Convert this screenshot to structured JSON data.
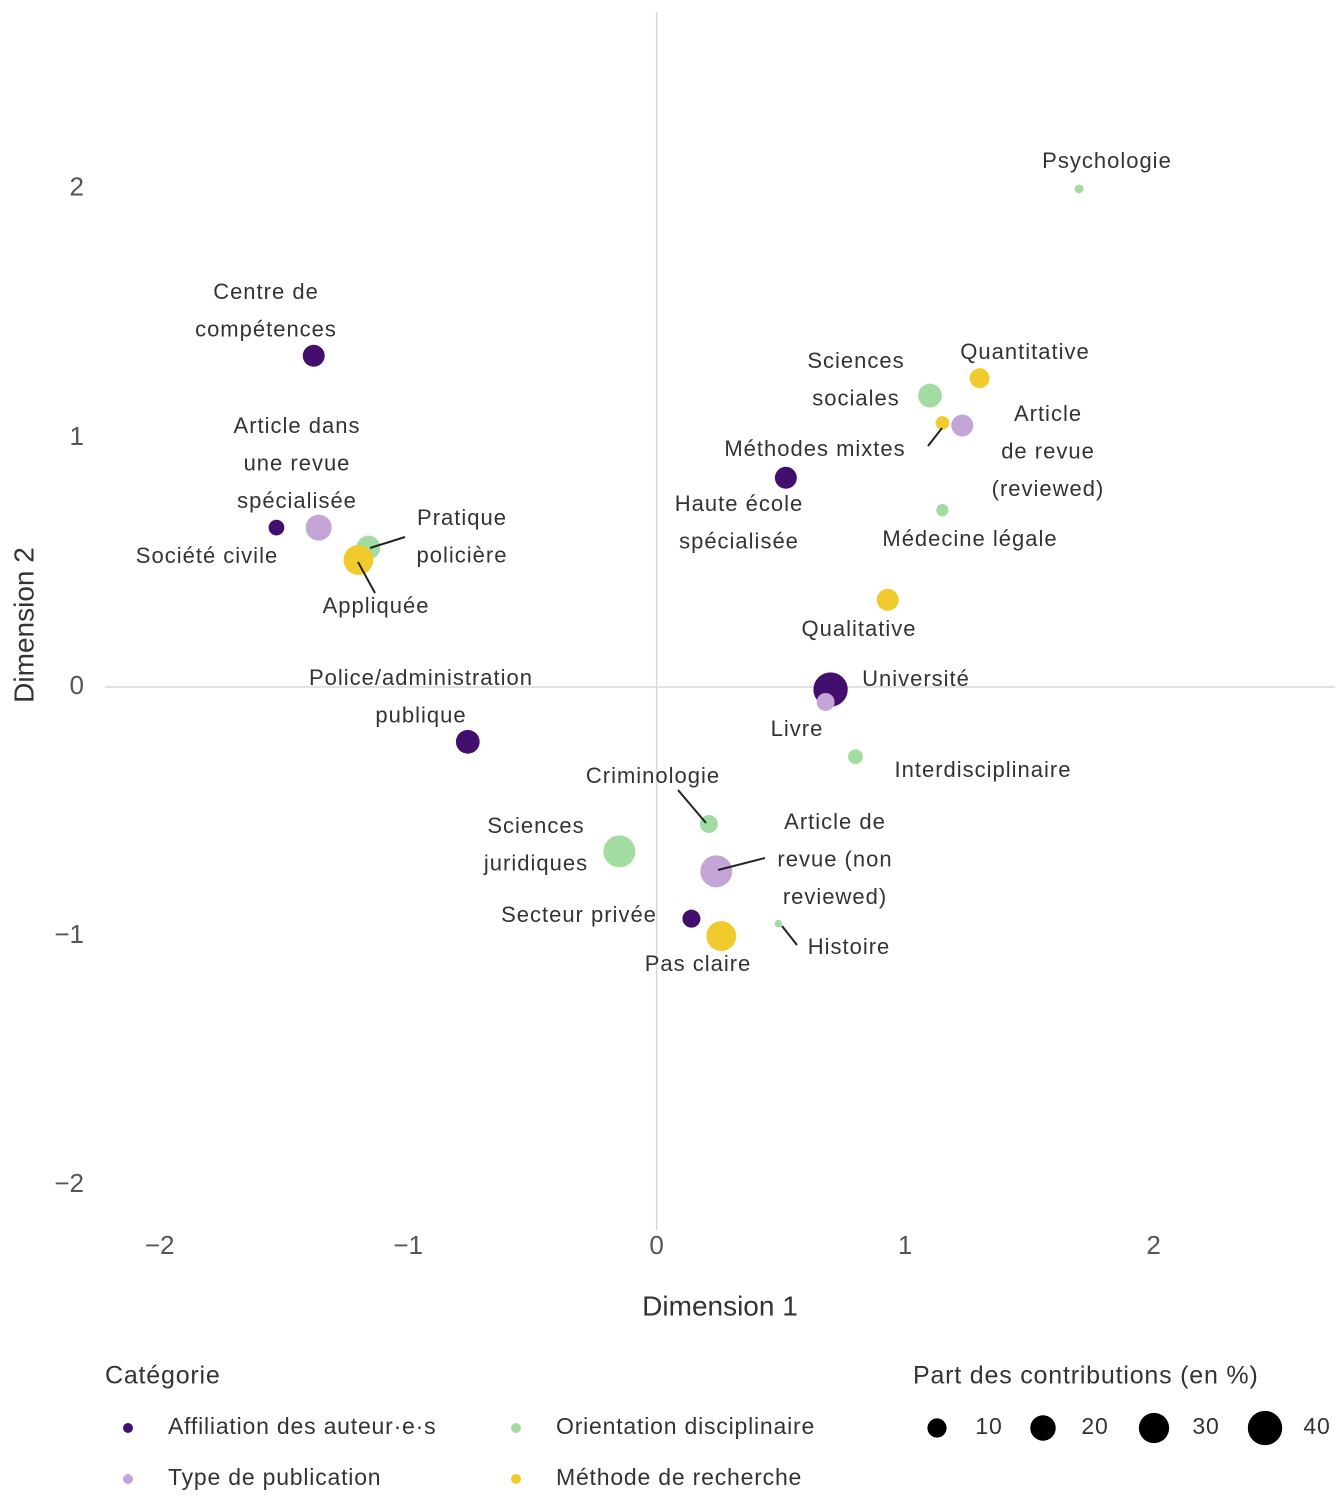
{
  "chart_data": {
    "type": "bubble",
    "xlabel": "Dimension 1",
    "ylabel": "Dimension 2",
    "xlim": [
      -2.22,
      2.73
    ],
    "ylim": [
      -2.18,
      2.71
    ],
    "xticks": [
      {
        "value": -2,
        "label": "−2"
      },
      {
        "value": -1,
        "label": "−1"
      },
      0,
      1,
      2
    ],
    "yticks": [
      {
        "value": -2,
        "label": "−2"
      },
      {
        "value": -1,
        "label": "−1"
      },
      0,
      1,
      2
    ],
    "zero_lines": true,
    "legend_title": "Catégorie",
    "size_legend_title": "Part des contributions (en %)",
    "size_legend": [
      10,
      20,
      30,
      40
    ],
    "series": [
      {
        "name": "Affiliation des auteur·e·s",
        "color": "#420f6e",
        "x": [
          -1.38,
          -1.53,
          0.52,
          -0.76,
          0.7,
          0.14
        ],
        "y": [
          1.33,
          0.64,
          0.84,
          -0.22,
          -0.01,
          -0.93
        ],
        "sizes": [
          14,
          6,
          14,
          17,
          40,
          8.5
        ],
        "labels": [
          [
            "Centre de",
            "compétences"
          ],
          [
            "Société civile"
          ],
          [
            "Haute école",
            "spécialisée"
          ],
          [
            "Police/administration",
            "publique"
          ],
          [
            "Université"
          ],
          [
            "Secteur privée"
          ]
        ]
      },
      {
        "name": "Orientation disciplinaire",
        "color": "#a3dca0",
        "x": [
          1.7,
          1.1,
          1.15,
          -1.16,
          0.8,
          0.21,
          -0.15,
          0.49
        ],
        "y": [
          2.0,
          1.17,
          0.71,
          0.56,
          -0.28,
          -0.55,
          -0.66,
          -0.95
        ],
        "sizes": [
          1,
          17,
          3,
          17,
          5,
          8.5,
          34,
          0.5
        ],
        "labels": [
          [
            "Psychologie"
          ],
          [
            "Sciences",
            "sociales"
          ],
          [
            "Médecine légale"
          ],
          [
            "Pratique",
            "policière"
          ],
          [
            "Interdisciplinaire"
          ],
          [
            "Criminologie"
          ],
          [
            "Sciences",
            "juridiques"
          ],
          [
            "Histoire"
          ]
        ]
      },
      {
        "name": "Type de publication",
        "color": "#c3a5d7",
        "x": [
          -1.36,
          1.23,
          0.68,
          0.24
        ],
        "y": [
          0.64,
          1.05,
          -0.06,
          -0.74
        ],
        "sizes": [
          21,
          14,
          8.5,
          34
        ],
        "labels": [
          [
            "Article dans",
            "une revue",
            "spécialisée"
          ],
          [
            "Article",
            "de revue",
            "(reviewed)"
          ],
          [
            "Livre"
          ],
          [
            "Article de",
            "revue (non",
            "reviewed)"
          ]
        ]
      },
      {
        "name": "Méthode de recherche",
        "color": "#f1cb2e",
        "x": [
          1.3,
          1.15,
          -1.2,
          0.93,
          0.26
        ],
        "y": [
          1.24,
          1.06,
          0.51,
          0.35,
          -1.0
        ],
        "sizes": [
          11,
          4,
          29,
          14,
          29
        ],
        "labels": [
          [
            "Quantitative"
          ],
          [
            "Méthodes mixtes"
          ],
          [
            "Appliquée"
          ],
          [
            "Qualitative"
          ],
          [
            "Pas claire"
          ]
        ]
      }
    ]
  }
}
